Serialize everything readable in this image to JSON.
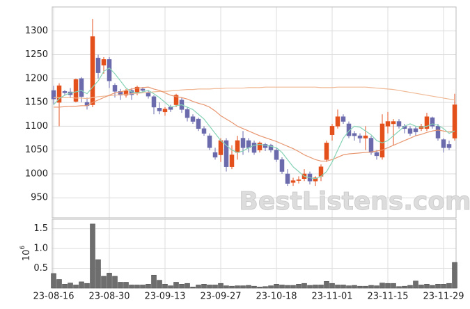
{
  "chart_data": {
    "type": "candlestick",
    "categories": [
      "23-08-16",
      null,
      null,
      null,
      null,
      null,
      null,
      null,
      null,
      null,
      "23-08-30",
      null,
      null,
      null,
      null,
      null,
      null,
      null,
      null,
      null,
      "23-09-13",
      null,
      null,
      null,
      null,
      null,
      null,
      null,
      null,
      null,
      "23-09-27",
      null,
      null,
      null,
      null,
      null,
      null,
      null,
      null,
      null,
      "23-10-18",
      null,
      null,
      null,
      null,
      null,
      null,
      null,
      null,
      null,
      "23-11-01",
      null,
      null,
      null,
      null,
      null,
      null,
      null,
      null,
      null,
      "23-11-15",
      null,
      null,
      null,
      null,
      null,
      null,
      null,
      null,
      null,
      "23-11-29",
      null,
      null
    ],
    "open": [
      1175,
      1150,
      1173,
      1172,
      1152,
      1200,
      1150,
      1145,
      1243,
      1228,
      1240,
      1186,
      1173,
      1165,
      1175,
      1170,
      1178,
      1170,
      1162,
      1138,
      1130,
      1140,
      1145,
      1155,
      1135,
      1120,
      1115,
      1095,
      1080,
      1045,
      1040,
      1070,
      1015,
      1045,
      1075,
      1070,
      1065,
      1050,
      1062,
      1060,
      1050,
      1030,
      1000,
      982,
      986,
      990,
      1000,
      985,
      995,
      1030,
      1082,
      1100,
      1120,
      1105,
      1085,
      1080,
      1075,
      1075,
      1045,
      1035,
      1100,
      1105,
      1110,
      1100,
      1095,
      1095,
      1095,
      1095,
      1118,
      1100,
      1072,
      1062,
      1075
    ],
    "high": [
      1185,
      1190,
      1176,
      1180,
      1200,
      1203,
      1160,
      1325,
      1250,
      1245,
      1245,
      1190,
      1178,
      1178,
      1180,
      1185,
      1182,
      1175,
      1165,
      1150,
      1140,
      1145,
      1168,
      1160,
      1140,
      1125,
      1118,
      1100,
      1085,
      1055,
      1075,
      1075,
      1060,
      1080,
      1090,
      1075,
      1070,
      1068,
      1065,
      1063,
      1055,
      1035,
      1010,
      992,
      995,
      1010,
      1005,
      995,
      1020,
      1070,
      1105,
      1135,
      1125,
      1110,
      1090,
      1085,
      1100,
      1080,
      1050,
      1125,
      1130,
      1115,
      1115,
      1105,
      1100,
      1100,
      1105,
      1128,
      1120,
      1105,
      1075,
      1070,
      1168
    ],
    "low": [
      1145,
      1100,
      1165,
      1160,
      1150,
      1150,
      1135,
      1140,
      1200,
      1210,
      1180,
      1160,
      1155,
      1160,
      1155,
      1165,
      1170,
      1158,
      1125,
      1125,
      1122,
      1130,
      1140,
      1128,
      1110,
      1105,
      1090,
      1080,
      1050,
      1030,
      1025,
      1005,
      1010,
      1030,
      1040,
      1045,
      1040,
      1045,
      1048,
      1045,
      1025,
      1000,
      975,
      975,
      980,
      985,
      978,
      975,
      985,
      1025,
      1070,
      1095,
      1105,
      1075,
      1070,
      1065,
      1050,
      1040,
      1030,
      1030,
      1085,
      1060,
      1095,
      1085,
      1080,
      1080,
      1090,
      1090,
      1095,
      1070,
      1045,
      1050,
      1070
    ],
    "close": [
      1157,
      1185,
      1170,
      1166,
      1198,
      1162,
      1143,
      1288,
      1212,
      1240,
      1195,
      1173,
      1165,
      1174,
      1166,
      1182,
      1175,
      1163,
      1140,
      1132,
      1136,
      1135,
      1165,
      1135,
      1118,
      1110,
      1095,
      1085,
      1055,
      1035,
      1070,
      1015,
      1040,
      1070,
      1055,
      1055,
      1045,
      1065,
      1055,
      1050,
      1030,
      1005,
      980,
      986,
      988,
      1000,
      985,
      992,
      1015,
      1065,
      1100,
      1120,
      1110,
      1080,
      1080,
      1075,
      1080,
      1045,
      1038,
      1105,
      1110,
      1110,
      1100,
      1095,
      1085,
      1088,
      1100,
      1120,
      1100,
      1075,
      1055,
      1055,
      1145
    ],
    "up_color": "#e4501c",
    "down_color": "#6a6aad",
    "ylim": [
      908,
      1350
    ],
    "yticks": [
      950,
      1000,
      1050,
      1100,
      1150,
      1200,
      1250,
      1300
    ],
    "grid": true,
    "lines": [
      {
        "color": "#f0b894",
        "values": [
          1160,
          1160,
          1160,
          1160,
          1159,
          1159,
          1158,
          1160,
          1162,
          1163,
          1164,
          1165,
          1166,
          1167,
          1168,
          1169,
          1170,
          1171,
          1172,
          1173,
          1173,
          1174,
          1175,
          1176,
          1177,
          1177,
          1178,
          1178,
          1178,
          1179,
          1179,
          1180,
          1180,
          1180,
          1180,
          1181,
          1181,
          1181,
          1182,
          1182,
          1182,
          1182,
          1182,
          1182,
          1182,
          1182,
          1182,
          1182,
          1181,
          1181,
          1181,
          1182,
          1182,
          1182,
          1182,
          1182,
          1182,
          1181,
          1180,
          1179,
          1178,
          1177,
          1175,
          1173,
          1171,
          1169,
          1167,
          1165,
          1163,
          1161,
          1159,
          1157,
          1155
        ]
      },
      {
        "color": "#e8956e",
        "values": [
          1140,
          1140,
          1141,
          1142,
          1142,
          1143,
          1143,
          1150,
          1155,
          1160,
          1165,
          1170,
          1172,
          1175,
          1178,
          1180,
          1181,
          1182,
          1178,
          1175,
          1170,
          1165,
          1162,
          1160,
          1157,
          1152,
          1148,
          1145,
          1140,
          1132,
          1122,
          1115,
          1108,
          1100,
          1095,
          1090,
          1085,
          1080,
          1076,
          1072,
          1068,
          1063,
          1058,
          1053,
          1047,
          1040,
          1035,
          1030,
          1027,
          1027,
          1030,
          1035,
          1040,
          1042,
          1043,
          1044,
          1045,
          1046,
          1048,
          1050,
          1055,
          1060,
          1065,
          1070,
          1075,
          1080,
          1083,
          1087,
          1090,
          1092,
          1090,
          1088,
          1090
        ]
      },
      {
        "color": "#86d3b5",
        "values": [
          1145,
          1158,
          1165,
          1170,
          1172,
          1175,
          1168,
          1182,
          1195,
          1215,
          1222,
          1210,
          1195,
          1180,
          1172,
          1170,
          1172,
          1175,
          1168,
          1160,
          1150,
          1140,
          1143,
          1145,
          1140,
          1135,
          1125,
          1115,
          1100,
          1085,
          1070,
          1060,
          1050,
          1045,
          1048,
          1055,
          1060,
          1062,
          1060,
          1058,
          1055,
          1045,
          1030,
          1015,
          1005,
          995,
          992,
          990,
          995,
          1005,
          1025,
          1050,
          1075,
          1090,
          1100,
          1098,
          1090,
          1082,
          1070,
          1065,
          1070,
          1080,
          1090,
          1100,
          1105,
          1100,
          1098,
          1100,
          1105,
          1102,
          1095,
          1085,
          1090
        ]
      }
    ],
    "volume": {
      "color": "#6e6e6e",
      "values": [
        0.37,
        0.22,
        0.1,
        0.13,
        0.08,
        0.16,
        0.12,
        1.62,
        0.72,
        0.3,
        0.38,
        0.3,
        0.15,
        0.15,
        0.08,
        0.08,
        0.08,
        0.1,
        0.33,
        0.2,
        0.1,
        0.06,
        0.15,
        0.1,
        0.12,
        0.03,
        0.08,
        0.1,
        0.08,
        0.08,
        0.12,
        0.06,
        0.05,
        0.06,
        0.06,
        0.07,
        0.05,
        0.03,
        0.04,
        0.06,
        0.1,
        0.08,
        0.07,
        0.07,
        0.1,
        0.12,
        0.07,
        0.08,
        0.08,
        0.17,
        0.12,
        0.08,
        0.08,
        0.06,
        0.07,
        0.05,
        0.05,
        0.07,
        0.06,
        0.13,
        0.12,
        0.12,
        0.04,
        0.05,
        0.07,
        0.18,
        0.08,
        0.1,
        0.07,
        0.1,
        0.1,
        0.12,
        0.65
      ],
      "ylim": [
        0,
        1.74
      ],
      "yticks": [
        0.5,
        {
          "value": 1,
          "label": "1.0"
        },
        1.5
      ],
      "offset_label": {
        "base": "10",
        "exponent": "6"
      }
    },
    "watermark": "BestListens.com"
  }
}
